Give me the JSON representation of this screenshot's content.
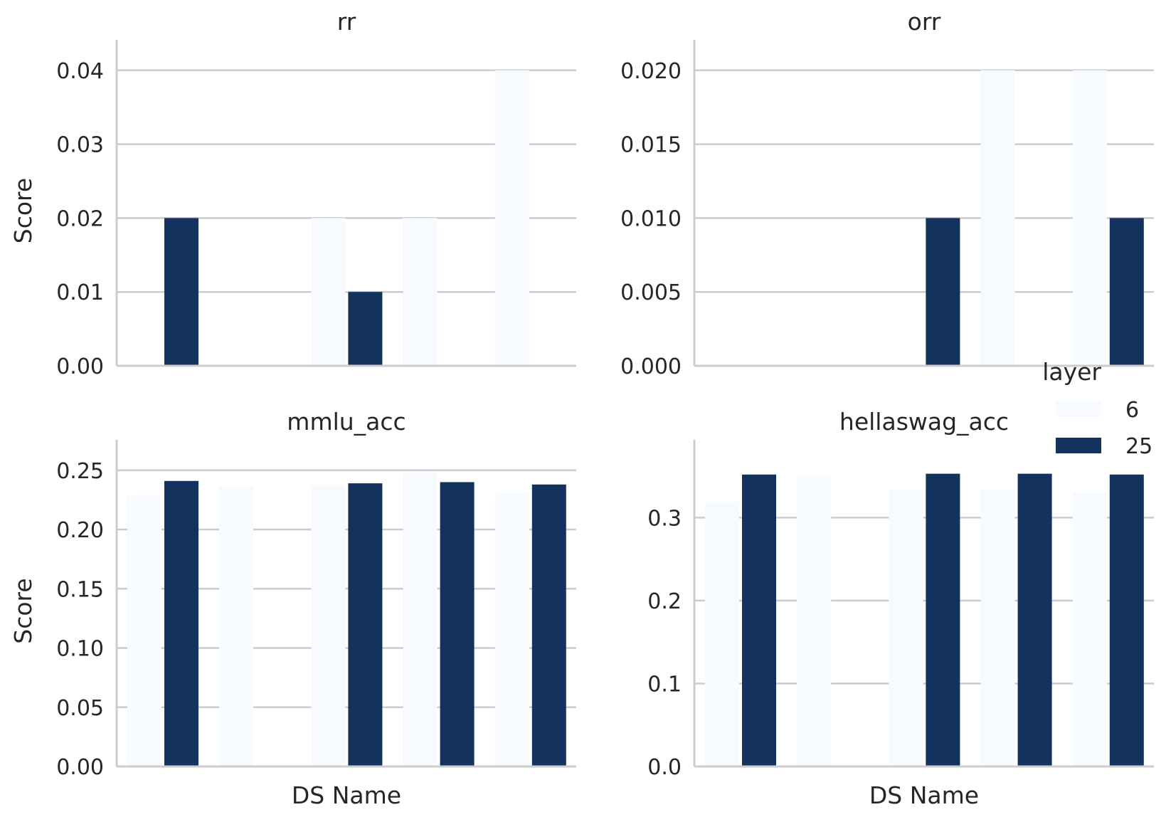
{
  "chart_data": [
    {
      "type": "bar",
      "title": "rr",
      "xlabel": "",
      "ylabel": "Score",
      "ylim": [
        0,
        0.042
      ],
      "yticks": [
        "0.00",
        "0.01",
        "0.02",
        "0.03",
        "0.04"
      ],
      "grid": "horizontal",
      "series": [
        {
          "name": "6",
          "values": [
            0,
            0,
            0.02,
            0.02,
            0.04
          ]
        },
        {
          "name": "25",
          "values": [
            0.02,
            0,
            0.01,
            0,
            0
          ]
        }
      ]
    },
    {
      "type": "bar",
      "title": "orr",
      "xlabel": "",
      "ylabel": "",
      "ylim": [
        0,
        0.021
      ],
      "yticks": [
        "0.000",
        "0.005",
        "0.010",
        "0.015",
        "0.020"
      ],
      "grid": "horizontal",
      "series": [
        {
          "name": "6",
          "values": [
            0,
            0,
            0,
            0.02,
            0.02
          ]
        },
        {
          "name": "25",
          "values": [
            0,
            0,
            0.01,
            0,
            0.01
          ]
        }
      ]
    },
    {
      "type": "bar",
      "title": "mmlu_acc",
      "xlabel": "DS Name",
      "ylabel": "Score",
      "ylim": [
        0,
        0.2625
      ],
      "yticks": [
        "0.00",
        "0.05",
        "0.10",
        "0.15",
        "0.20",
        "0.25"
      ],
      "grid": "horizontal",
      "series": [
        {
          "name": "6",
          "values": [
            0.229,
            0.236,
            0.237,
            0.248,
            0.232
          ]
        },
        {
          "name": "25",
          "values": [
            0.241,
            0,
            0.239,
            0.24,
            0.238
          ]
        }
      ]
    },
    {
      "type": "bar",
      "title": "hellaswag_acc",
      "xlabel": "DS Name",
      "ylabel": "",
      "ylim": [
        0,
        0.375
      ],
      "yticks": [
        "0.0",
        "0.1",
        "0.2",
        "0.3"
      ],
      "grid": "horizontal",
      "series": [
        {
          "name": "6",
          "values": [
            0.319,
            0.352,
            0.334,
            0.334,
            0.33
          ]
        },
        {
          "name": "25",
          "values": [
            0.352,
            0,
            0.353,
            0.353,
            0.352
          ]
        }
      ]
    }
  ],
  "legend": {
    "title": "layer",
    "placement": "right",
    "entries": [
      {
        "label": "6",
        "color": "#f7fbff"
      },
      {
        "label": "25",
        "color": "#14325e"
      }
    ]
  },
  "colors": {
    "series_6": "#f7fbff",
    "series_25": "#14325e",
    "grid": "#cccccc",
    "spine": "#cccccc"
  }
}
